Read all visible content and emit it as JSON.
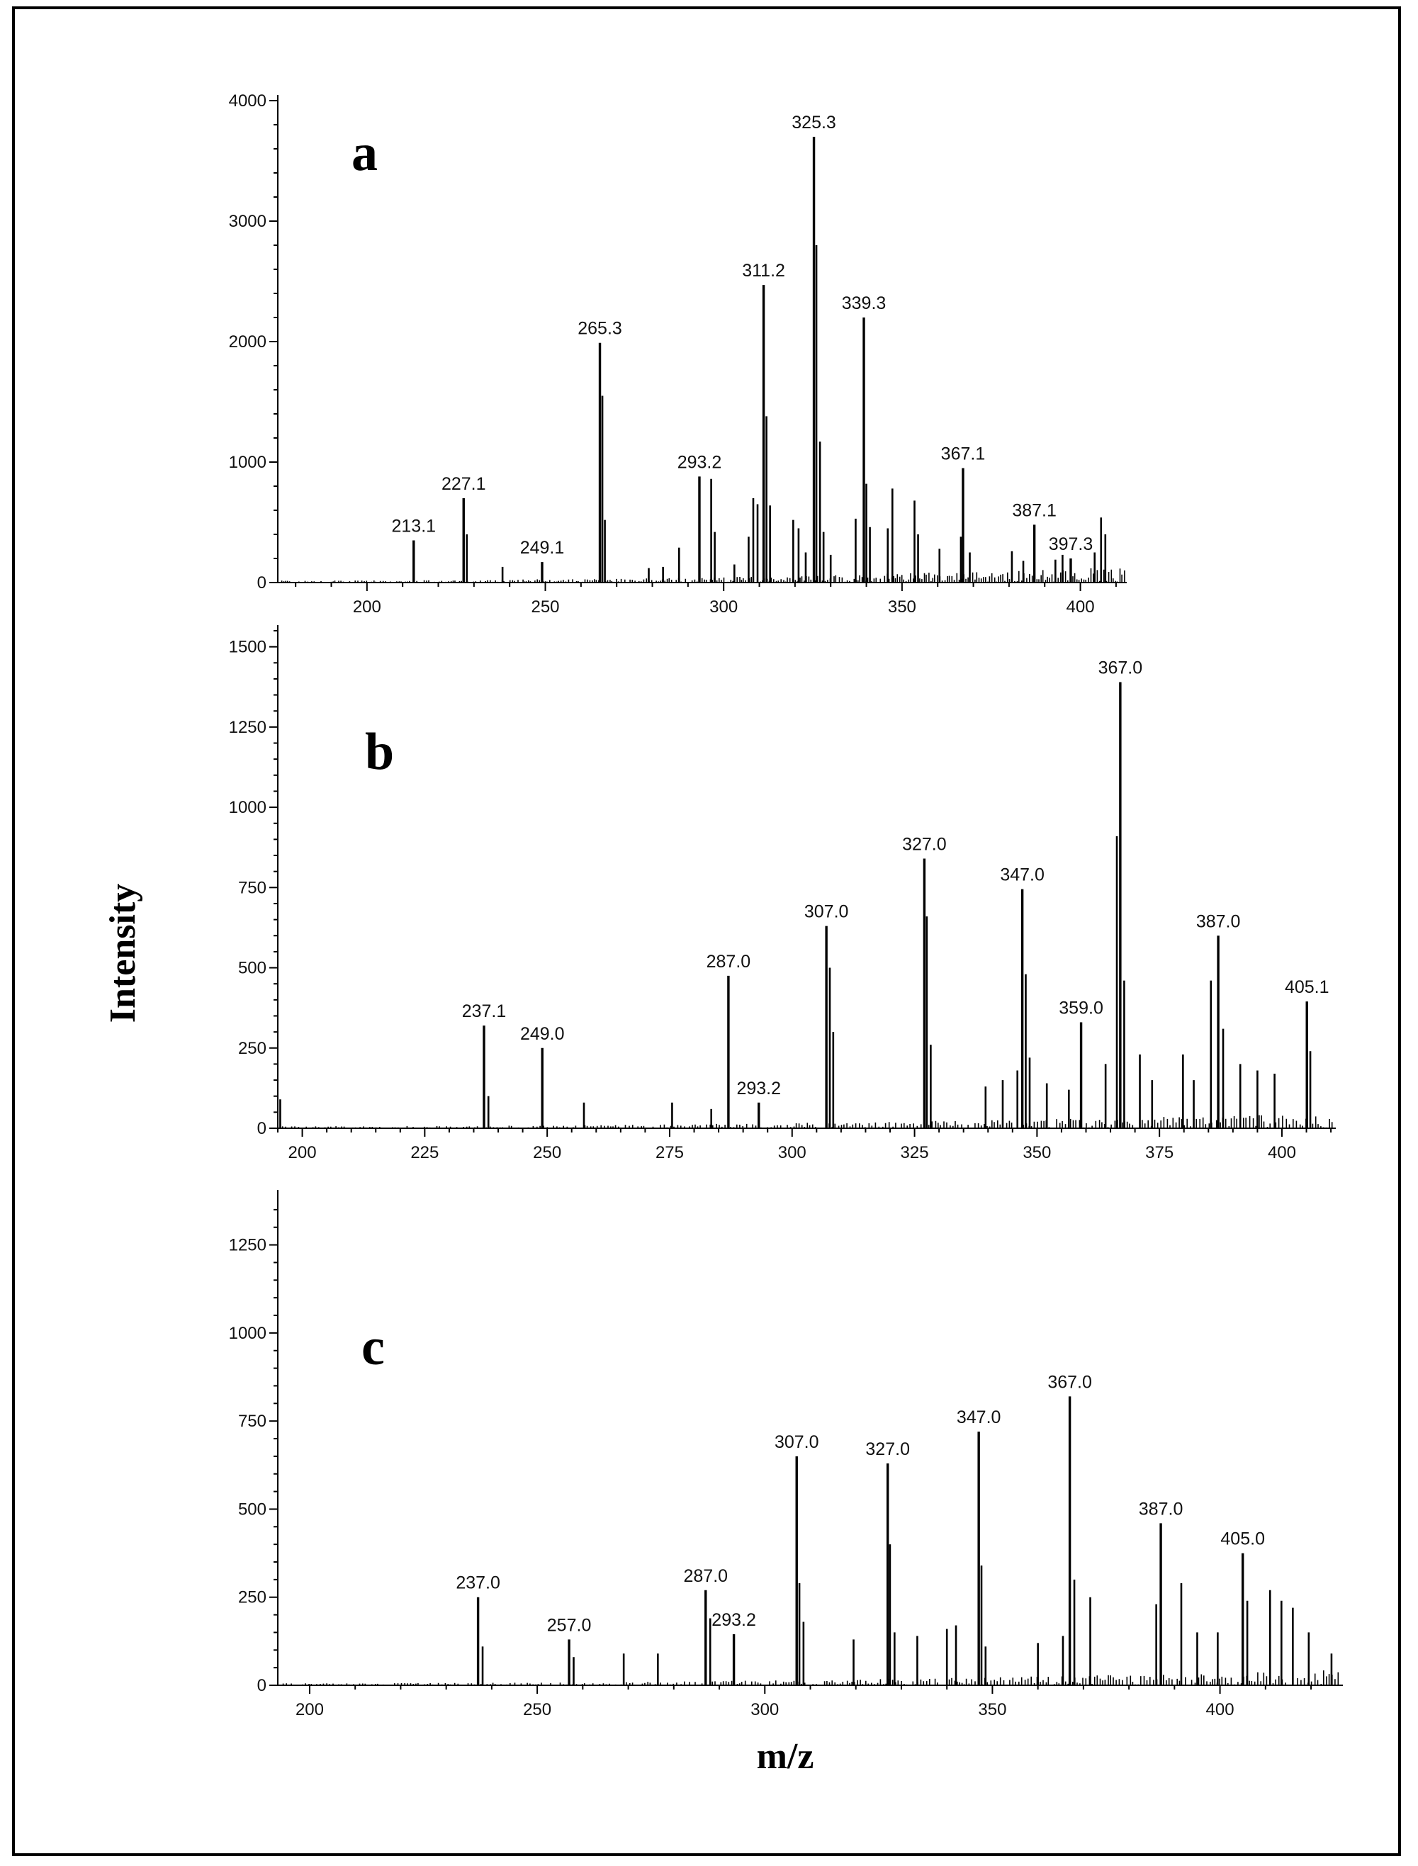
{
  "figure": {
    "ylabel": "Intensity",
    "xlabel": "m/z"
  },
  "chart_data": [
    {
      "type": "line",
      "panel": "a",
      "xlim": [
        175,
        413
      ],
      "ylim": [
        0,
        4000
      ],
      "xticks": [
        200,
        250,
        300,
        350,
        400
      ],
      "yticks": [
        0,
        1000,
        2000,
        3000,
        4000
      ],
      "peaks": [
        {
          "mz": 213.1,
          "intensity": 350,
          "label": "213.1"
        },
        {
          "mz": 227.1,
          "intensity": 700,
          "label": "227.1"
        },
        {
          "mz": 249.1,
          "intensity": 170,
          "label": "249.1"
        },
        {
          "mz": 265.3,
          "intensity": 1990,
          "label": "265.3"
        },
        {
          "mz": 293.2,
          "intensity": 880,
          "label": "293.2"
        },
        {
          "mz": 311.2,
          "intensity": 2470,
          "label": "311.2"
        },
        {
          "mz": 325.3,
          "intensity": 3700,
          "label": "325.3"
        },
        {
          "mz": 339.3,
          "intensity": 2200,
          "label": "339.3"
        },
        {
          "mz": 367.1,
          "intensity": 950,
          "label": "367.1"
        },
        {
          "mz": 387.1,
          "intensity": 480,
          "label": "387.1"
        },
        {
          "mz": 397.3,
          "intensity": 200,
          "label": "397.3"
        },
        {
          "mz": 228.0,
          "intensity": 400
        },
        {
          "mz": 238.0,
          "intensity": 130
        },
        {
          "mz": 266.0,
          "intensity": 1550
        },
        {
          "mz": 266.7,
          "intensity": 520
        },
        {
          "mz": 279.0,
          "intensity": 120
        },
        {
          "mz": 283.0,
          "intensity": 130
        },
        {
          "mz": 287.5,
          "intensity": 290
        },
        {
          "mz": 296.5,
          "intensity": 860
        },
        {
          "mz": 297.5,
          "intensity": 420
        },
        {
          "mz": 303.0,
          "intensity": 150
        },
        {
          "mz": 307.0,
          "intensity": 380
        },
        {
          "mz": 308.3,
          "intensity": 700
        },
        {
          "mz": 309.5,
          "intensity": 650
        },
        {
          "mz": 312.0,
          "intensity": 1380
        },
        {
          "mz": 313.0,
          "intensity": 640
        },
        {
          "mz": 319.5,
          "intensity": 520
        },
        {
          "mz": 321.0,
          "intensity": 450
        },
        {
          "mz": 323.0,
          "intensity": 250
        },
        {
          "mz": 326.0,
          "intensity": 2800
        },
        {
          "mz": 327.0,
          "intensity": 1170
        },
        {
          "mz": 328.0,
          "intensity": 420
        },
        {
          "mz": 330.0,
          "intensity": 230
        },
        {
          "mz": 337.0,
          "intensity": 530
        },
        {
          "mz": 340.0,
          "intensity": 820
        },
        {
          "mz": 341.0,
          "intensity": 460
        },
        {
          "mz": 346.0,
          "intensity": 450
        },
        {
          "mz": 347.3,
          "intensity": 780
        },
        {
          "mz": 353.5,
          "intensity": 680
        },
        {
          "mz": 354.5,
          "intensity": 400
        },
        {
          "mz": 360.5,
          "intensity": 280
        },
        {
          "mz": 366.5,
          "intensity": 380
        },
        {
          "mz": 369.0,
          "intensity": 250
        },
        {
          "mz": 380.8,
          "intensity": 260
        },
        {
          "mz": 384.0,
          "intensity": 180
        },
        {
          "mz": 393.0,
          "intensity": 190
        },
        {
          "mz": 395.0,
          "intensity": 230
        },
        {
          "mz": 404.0,
          "intensity": 250
        },
        {
          "mz": 405.8,
          "intensity": 540
        },
        {
          "mz": 407.0,
          "intensity": 400
        }
      ]
    },
    {
      "type": "line",
      "panel": "b",
      "xlim": [
        195,
        411
      ],
      "ylim": [
        0,
        1550
      ],
      "xticks": [
        200,
        225,
        250,
        275,
        300,
        325,
        350,
        375,
        400
      ],
      "yticks": [
        0,
        250,
        500,
        750,
        1000,
        1250,
        1500
      ],
      "peaks": [
        {
          "mz": 237.1,
          "intensity": 320,
          "label": "237.1"
        },
        {
          "mz": 249.0,
          "intensity": 250,
          "label": "249.0"
        },
        {
          "mz": 287.0,
          "intensity": 475,
          "label": "287.0"
        },
        {
          "mz": 293.2,
          "intensity": 80,
          "label": "293.2"
        },
        {
          "mz": 307.0,
          "intensity": 630,
          "label": "307.0"
        },
        {
          "mz": 327.0,
          "intensity": 840,
          "label": "327.0"
        },
        {
          "mz": 347.0,
          "intensity": 745,
          "label": "347.0"
        },
        {
          "mz": 359.0,
          "intensity": 330,
          "label": "359.0"
        },
        {
          "mz": 367.0,
          "intensity": 1390,
          "label": "367.0"
        },
        {
          "mz": 387.0,
          "intensity": 600,
          "label": "387.0"
        },
        {
          "mz": 405.1,
          "intensity": 395,
          "label": "405.1"
        },
        {
          "mz": 195.5,
          "intensity": 90
        },
        {
          "mz": 238.0,
          "intensity": 100
        },
        {
          "mz": 257.5,
          "intensity": 80
        },
        {
          "mz": 275.5,
          "intensity": 80
        },
        {
          "mz": 283.5,
          "intensity": 60
        },
        {
          "mz": 307.7,
          "intensity": 500
        },
        {
          "mz": 308.4,
          "intensity": 300
        },
        {
          "mz": 327.5,
          "intensity": 660
        },
        {
          "mz": 328.3,
          "intensity": 260
        },
        {
          "mz": 339.5,
          "intensity": 130
        },
        {
          "mz": 343.0,
          "intensity": 150
        },
        {
          "mz": 346.0,
          "intensity": 180
        },
        {
          "mz": 347.7,
          "intensity": 480
        },
        {
          "mz": 348.5,
          "intensity": 220
        },
        {
          "mz": 352.0,
          "intensity": 140
        },
        {
          "mz": 356.5,
          "intensity": 120
        },
        {
          "mz": 364.0,
          "intensity": 200
        },
        {
          "mz": 366.3,
          "intensity": 910
        },
        {
          "mz": 367.8,
          "intensity": 460
        },
        {
          "mz": 371.0,
          "intensity": 230
        },
        {
          "mz": 373.5,
          "intensity": 150
        },
        {
          "mz": 379.8,
          "intensity": 230
        },
        {
          "mz": 382.0,
          "intensity": 150
        },
        {
          "mz": 385.5,
          "intensity": 460
        },
        {
          "mz": 388.0,
          "intensity": 310
        },
        {
          "mz": 391.5,
          "intensity": 200
        },
        {
          "mz": 395.0,
          "intensity": 180
        },
        {
          "mz": 398.5,
          "intensity": 170
        },
        {
          "mz": 405.8,
          "intensity": 240
        }
      ]
    },
    {
      "type": "line",
      "panel": "c",
      "xlim": [
        193,
        427
      ],
      "ylim": [
        0,
        1390
      ],
      "xticks": [
        200,
        250,
        300,
        350,
        400
      ],
      "yticks": [
        0,
        250,
        500,
        750,
        1000,
        1250
      ],
      "peaks": [
        {
          "mz": 237.0,
          "intensity": 250,
          "label": "237.0"
        },
        {
          "mz": 257.0,
          "intensity": 130,
          "label": "257.0"
        },
        {
          "mz": 287.0,
          "intensity": 270,
          "label": "287.0"
        },
        {
          "mz": 293.2,
          "intensity": 145,
          "label": "293.2"
        },
        {
          "mz": 307.0,
          "intensity": 650,
          "label": "307.0"
        },
        {
          "mz": 327.0,
          "intensity": 630,
          "label": "327.0"
        },
        {
          "mz": 347.0,
          "intensity": 720,
          "label": "347.0"
        },
        {
          "mz": 367.0,
          "intensity": 820,
          "label": "367.0"
        },
        {
          "mz": 387.0,
          "intensity": 460,
          "label": "387.0"
        },
        {
          "mz": 405.0,
          "intensity": 375,
          "label": "405.0"
        },
        {
          "mz": 238.0,
          "intensity": 110
        },
        {
          "mz": 258.0,
          "intensity": 80
        },
        {
          "mz": 269.0,
          "intensity": 90
        },
        {
          "mz": 276.5,
          "intensity": 90
        },
        {
          "mz": 288.0,
          "intensity": 190
        },
        {
          "mz": 307.6,
          "intensity": 290
        },
        {
          "mz": 308.5,
          "intensity": 180
        },
        {
          "mz": 319.5,
          "intensity": 130
        },
        {
          "mz": 327.5,
          "intensity": 400
        },
        {
          "mz": 328.5,
          "intensity": 150
        },
        {
          "mz": 333.5,
          "intensity": 140
        },
        {
          "mz": 340.0,
          "intensity": 160
        },
        {
          "mz": 342.0,
          "intensity": 170
        },
        {
          "mz": 347.6,
          "intensity": 340
        },
        {
          "mz": 348.5,
          "intensity": 110
        },
        {
          "mz": 360.0,
          "intensity": 120
        },
        {
          "mz": 365.5,
          "intensity": 140
        },
        {
          "mz": 368.0,
          "intensity": 300
        },
        {
          "mz": 371.5,
          "intensity": 250
        },
        {
          "mz": 386.0,
          "intensity": 230
        },
        {
          "mz": 391.5,
          "intensity": 290
        },
        {
          "mz": 395.0,
          "intensity": 150
        },
        {
          "mz": 399.5,
          "intensity": 150
        },
        {
          "mz": 406.0,
          "intensity": 240
        },
        {
          "mz": 411.0,
          "intensity": 270
        },
        {
          "mz": 413.5,
          "intensity": 240
        },
        {
          "mz": 416.0,
          "intensity": 220
        },
        {
          "mz": 419.5,
          "intensity": 150
        },
        {
          "mz": 424.5,
          "intensity": 90
        }
      ]
    }
  ]
}
